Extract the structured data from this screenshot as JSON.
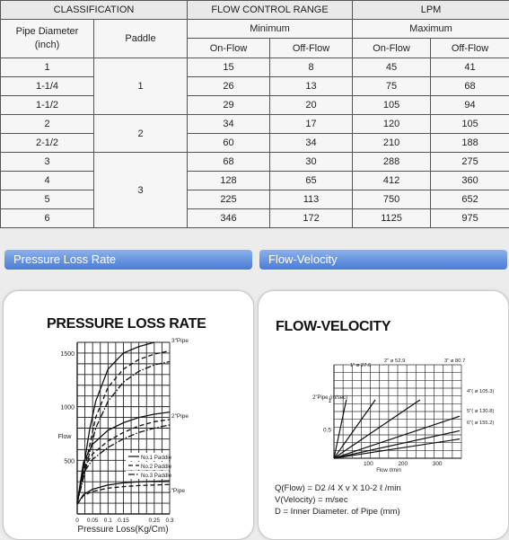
{
  "table": {
    "headers": {
      "classification": "CLASSIFICATION",
      "flow_control_range": "FLOW CONTROL RANGE",
      "lpm": "LPM",
      "pipe_diameter_line1": "Pipe Diameter",
      "pipe_diameter_line2": "(inch)",
      "paddle": "Paddle",
      "minimum": "Minimum",
      "maximum": "Maximum",
      "on_flow": "On-Flow",
      "off_flow": "Off-Flow"
    },
    "rows": [
      {
        "diameter": "1",
        "paddle": "1",
        "min_on": "15",
        "min_off": "8",
        "max_on": "45",
        "max_off": "41"
      },
      {
        "diameter": "1-1/4",
        "paddle": "",
        "min_on": "26",
        "min_off": "13",
        "max_on": "75",
        "max_off": "68"
      },
      {
        "diameter": "1-1/2",
        "paddle": "",
        "min_on": "29",
        "min_off": "20",
        "max_on": "105",
        "max_off": "94"
      },
      {
        "diameter": "2",
        "paddle": "2",
        "min_on": "34",
        "min_off": "17",
        "max_on": "120",
        "max_off": "105"
      },
      {
        "diameter": "2-1/2",
        "paddle": "",
        "min_on": "60",
        "min_off": "34",
        "max_on": "210",
        "max_off": "188"
      },
      {
        "diameter": "3",
        "paddle": "3",
        "min_on": "68",
        "min_off": "30",
        "max_on": "288",
        "max_off": "275"
      },
      {
        "diameter": "4",
        "paddle": "",
        "min_on": "128",
        "min_off": "65",
        "max_on": "412",
        "max_off": "360"
      },
      {
        "diameter": "5",
        "paddle": "",
        "min_on": "225",
        "min_off": "113",
        "max_on": "750",
        "max_off": "652"
      },
      {
        "diameter": "6",
        "paddle": "",
        "min_on": "346",
        "min_off": "172",
        "max_on": "1125",
        "max_off": "975"
      }
    ]
  },
  "sections": {
    "pressure_loss": "Pressure Loss Rate",
    "flow_velocity": "Flow-Velocity"
  },
  "chart_data": [
    {
      "type": "line",
      "title": "PRESSURE LOSS RATE",
      "xlabel": "Pressure Loss(Kg/Cm)",
      "ylabel": "Flow",
      "x_ticks": [
        "0",
        "0.05",
        "0.1",
        "0.15",
        "0.25",
        "0.3"
      ],
      "y_ticks": [
        "500",
        "1000",
        "1500"
      ],
      "xlim": [
        0,
        0.3
      ],
      "ylim": [
        0,
        1600
      ],
      "legend": [
        "No.1 Paddle",
        "No.2 Paddle",
        "No.3 Paddle"
      ],
      "curve_labels": [
        "3\"Pipe",
        "2\"Pipe",
        "1\"Pipe"
      ],
      "series": [
        {
          "name": "No.1 Paddle",
          "style": "solid",
          "x": [
            0.0,
            0.02,
            0.05,
            0.1,
            0.15,
            0.2,
            0.25,
            0.3
          ],
          "y": [
            90,
            180,
            230,
            270,
            290,
            300,
            305,
            310
          ]
        },
        {
          "name": "No.2 Paddle",
          "style": "dashed",
          "x": [
            0.0,
            0.02,
            0.05,
            0.1,
            0.15,
            0.2,
            0.25,
            0.3
          ],
          "y": [
            90,
            170,
            210,
            240,
            255,
            265,
            270,
            275
          ]
        },
        {
          "name": "No.1 Paddle",
          "style": "solid",
          "x": [
            0.0,
            0.02,
            0.05,
            0.1,
            0.15,
            0.2,
            0.25,
            0.3
          ],
          "y": [
            100,
            480,
            650,
            780,
            850,
            900,
            930,
            950
          ]
        },
        {
          "name": "No.2 Paddle",
          "style": "dashed",
          "x": [
            0.0,
            0.02,
            0.05,
            0.1,
            0.15,
            0.2,
            0.25,
            0.3
          ],
          "y": [
            100,
            420,
            560,
            680,
            760,
            820,
            860,
            880
          ]
        },
        {
          "name": "No.3 Paddle",
          "style": "dashdot",
          "x": [
            0.0,
            0.02,
            0.05,
            0.1,
            0.15,
            0.2,
            0.25,
            0.3
          ],
          "y": [
            100,
            380,
            510,
            620,
            700,
            760,
            800,
            830
          ]
        },
        {
          "name": "No.1 Paddle",
          "style": "solid",
          "x": [
            0.0,
            0.02,
            0.04,
            0.06,
            0.1,
            0.15,
            0.2,
            0.25
          ],
          "y": [
            100,
            420,
            780,
            1050,
            1350,
            1500,
            1560,
            1600
          ]
        },
        {
          "name": "No.2 Paddle",
          "style": "dashed",
          "x": [
            0.0,
            0.03,
            0.06,
            0.1,
            0.15,
            0.2,
            0.25,
            0.3
          ],
          "y": [
            100,
            500,
            900,
            1180,
            1350,
            1440,
            1490,
            1520
          ]
        },
        {
          "name": "No.3 Paddle",
          "style": "dashdot",
          "x": [
            0.0,
            0.03,
            0.06,
            0.1,
            0.15,
            0.2,
            0.25,
            0.3
          ],
          "y": [
            100,
            450,
            800,
            1050,
            1230,
            1330,
            1390,
            1420
          ]
        }
      ]
    },
    {
      "type": "line",
      "title": "FLOW-VELOCITY",
      "xlabel": "Flow ℓ/min",
      "ylabel": "2\"Pipe (m/sec)",
      "x_ticks": [
        "100",
        "200",
        "300"
      ],
      "y_ticks": [
        "0.5",
        "1"
      ],
      "xlim": [
        0,
        370
      ],
      "ylim": [
        0,
        1.6
      ],
      "series": [
        {
          "name": "1\" ø 27.6",
          "x": [
            0,
            36
          ],
          "y": [
            0,
            1.0
          ]
        },
        {
          "name": "2\" ø 52.9",
          "x": [
            0,
            120
          ],
          "y": [
            0,
            1.0
          ]
        },
        {
          "name": "3\" ø 80.7",
          "x": [
            0,
            250
          ],
          "y": [
            0,
            1.0
          ]
        },
        {
          "name": "4\"( ø 105.3)",
          "x": [
            0,
            365
          ],
          "y": [
            0,
            0.72
          ]
        },
        {
          "name": "5\"( ø 130.8)",
          "x": [
            0,
            365
          ],
          "y": [
            0,
            0.47
          ]
        },
        {
          "name": "6\"( ø 155.2)",
          "x": [
            0,
            365
          ],
          "y": [
            0,
            0.33
          ]
        }
      ]
    }
  ],
  "formula": {
    "line1": "Q(Flow) = D2 /4 X v X 10-2 ℓ /min",
    "line2": "V(Velocity) = m/sec",
    "line3": "D = Inner Diameter. of Pipe (mm)"
  }
}
